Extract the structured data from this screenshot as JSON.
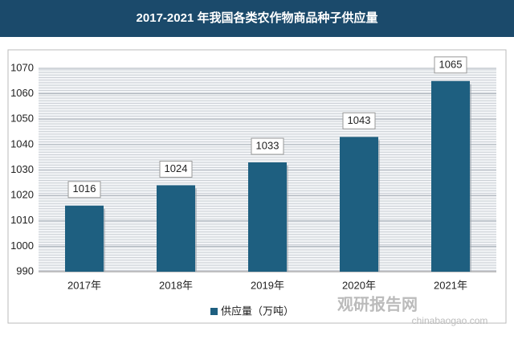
{
  "chart_data": {
    "type": "bar",
    "title": "2017-2021 年我国各类农作物商品种子供应量",
    "categories": [
      "2017年",
      "2018年",
      "2019年",
      "2020年",
      "2021年"
    ],
    "series": [
      {
        "name": "供应量（万吨）",
        "color": "#1e5f80",
        "values": [
          1016,
          1024,
          1033,
          1043,
          1065
        ]
      }
    ],
    "ylim": [
      990,
      1070
    ],
    "yticks": [
      990,
      1000,
      1010,
      1020,
      1030,
      1040,
      1050,
      1060,
      1070
    ],
    "grid": true,
    "watermark": {
      "name": "观研报告网",
      "url": "chinabaogao.com"
    }
  }
}
